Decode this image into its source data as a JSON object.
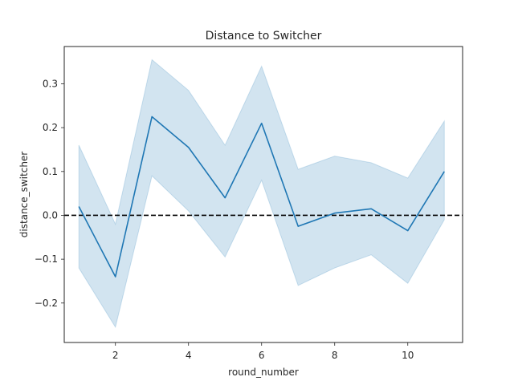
{
  "chart_data": {
    "type": "line",
    "title": "Distance to Switcher",
    "xlabel": "round_number",
    "ylabel": "distance_switcher",
    "xlim": [
      0.6,
      11.5
    ],
    "ylim": [
      -0.29,
      0.385
    ],
    "xticks": [
      2,
      4,
      6,
      8,
      10
    ],
    "yticks": [
      -0.2,
      -0.1,
      0.0,
      0.1,
      0.2,
      0.3
    ],
    "ytick_labels": [
      "−0.2",
      "−0.1",
      "0.0",
      "0.1",
      "0.2",
      "0.3"
    ],
    "grid": false,
    "legend": "none",
    "series": [
      {
        "x": [
          1,
          2,
          3,
          4,
          5,
          6,
          7,
          8,
          9,
          10,
          11
        ],
        "y": [
          0.02,
          -0.14,
          0.225,
          0.155,
          0.04,
          0.21,
          -0.025,
          0.005,
          0.015,
          -0.035,
          0.1
        ],
        "ci_upper": [
          0.16,
          -0.02,
          0.355,
          0.285,
          0.16,
          0.34,
          0.105,
          0.135,
          0.12,
          0.085,
          0.215
        ],
        "ci_lower": [
          -0.12,
          -0.255,
          0.09,
          0.01,
          -0.095,
          0.08,
          -0.16,
          -0.12,
          -0.09,
          -0.155,
          -0.01
        ],
        "color": "#1f77b4",
        "band_color": "#1f77b4"
      }
    ],
    "reference_line": {
      "y": 0.0,
      "style": "dashed",
      "color": "#000000"
    }
  }
}
